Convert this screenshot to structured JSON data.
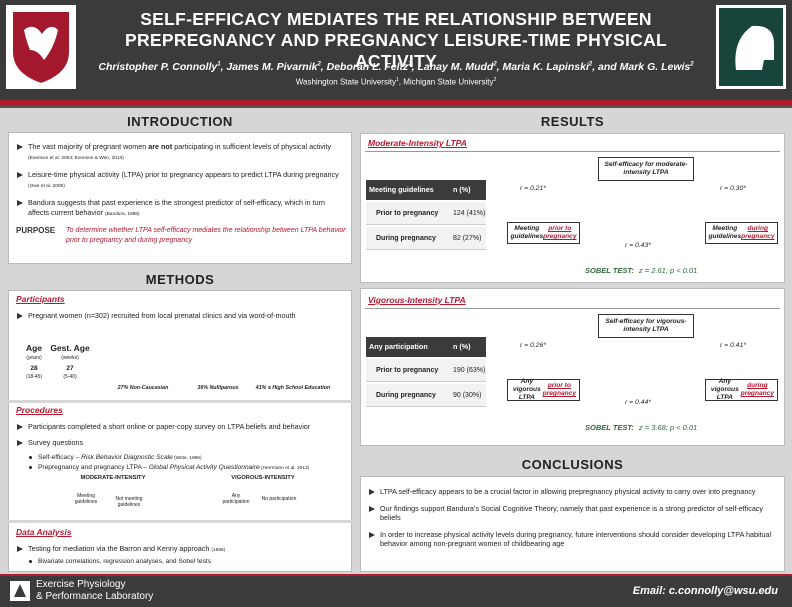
{
  "header": {
    "title_lines": [
      "SELF-EFFICACY MEDIATES THE RELATIONSHIP BETWEEN",
      "PREPREGNANCY AND PREGNANCY LEISURE-TIME PHYSICAL ACTIVITY"
    ],
    "authors": [
      {
        "name": "Christopher P. Connolly",
        "sup": "1"
      },
      {
        "name": ", James M. Pivarnik",
        "sup": "2"
      },
      {
        "name": ", Deborah L. Feltz",
        "sup": "2"
      },
      {
        "name": ", Lanay M. Mudd",
        "sup": "2"
      },
      {
        "name": ", Maria K. Lapinski",
        "sup": "2"
      },
      {
        "name": ", and Mark G. Lewis",
        "sup": "2"
      }
    ],
    "affiliations": [
      {
        "name": "Washington State University",
        "sup": "1"
      },
      {
        "name": ", Michigan State University",
        "sup": "2"
      }
    ]
  },
  "introduction": {
    "heading": "INTRODUCTION",
    "bullets": [
      [
        {
          "text": "The vast majority of pregnant women "
        },
        {
          "text": "are not",
          "style": "bold"
        },
        {
          "text": " participating in sufficient levels of physical activity "
        },
        {
          "text": "(Evenson et al. 2004; Evenson & Wen, 2010)",
          "style": "cite"
        }
      ],
      [
        {
          "text": "Leisure-time physical activity (LTPA) prior to pregnancy appears to predict LTPA during pregnancy "
        },
        {
          "text": "(Owe et al. 2009)",
          "style": "cite"
        }
      ],
      [
        {
          "text": "Bandura suggests that past experience is the strongest predictor of self-efficacy, which in turn affects current behavior "
        },
        {
          "text": "(Bandura, 1986)",
          "style": "cite"
        }
      ]
    ],
    "purpose_label": "PURPOSE",
    "purpose": "To determine whether LTPA self-efficacy mediates the relationship between LTPA behavior prior to pregnancy and during pregnancy"
  },
  "methods": {
    "heading": "METHODS",
    "participants": {
      "heading": "Participants",
      "bullet": "Pregnant women (n=302) recruited from local prenatal clinics and via word-of-mouth",
      "demographics": [
        {
          "label": "Age",
          "unit": "(years)",
          "value": "28",
          "range": "(18-45)"
        },
        {
          "label": "Gest. Age",
          "unit": "(weeks)",
          "value": "27",
          "range": "(5-40)"
        }
      ],
      "pies": [
        {
          "value": 27,
          "label": "27% Non-Caucasian"
        },
        {
          "value": 36,
          "label": "36% Nulliparous"
        },
        {
          "value": 41,
          "label": "41% ≤ High School Education"
        }
      ]
    },
    "procedures": {
      "heading": "Procedures",
      "bullets": [
        "Participants completed a short online or paper-copy survey on LTPA beliefs and behavior",
        "Survey questions"
      ],
      "sub_bullets": [
        [
          {
            "text": "Self-efficacy – "
          },
          {
            "text": "Risk Behavior Diagnostic Scale",
            "style": "italic"
          },
          {
            "text": " (Witte, 1996)",
            "style": "cite"
          }
        ],
        [
          {
            "text": "Prepregnancy and pregnancy LTPA – "
          },
          {
            "text": "Global Physical Activity Questionnaire",
            "style": "italic"
          },
          {
            "text": " (Herrmann et al. 2013)",
            "style": "cite"
          }
        ]
      ],
      "diagrams": [
        {
          "title": "MODERATE-INTENSITY",
          "left": "Meeting guidelines",
          "right": "Not meeting guidelines"
        },
        {
          "title": "VIGOROUS-INTENSITY",
          "left": "Any participation",
          "right": "No participation"
        }
      ]
    },
    "data_analysis": {
      "heading": "Data Analysis",
      "bullet": [
        {
          "text": "Testing for mediation via the Barron and Kenny approach "
        },
        {
          "text": "(1986)",
          "style": "cite"
        }
      ],
      "sub_bullet": "Bivariate correlations, regression analyses, and Sobel tests"
    }
  },
  "results": {
    "heading": "RESULTS",
    "panels": [
      {
        "heading": "Moderate-Intensity LTPA",
        "table": {
          "header": [
            "Meeting guidelines",
            "n (%)"
          ],
          "rows": [
            [
              "Prior to pregnancy",
              "124 (41%)"
            ],
            [
              "During pregnancy",
              "82 (27%)"
            ]
          ]
        },
        "mediator": "Self-efficacy for moderate-intensity LTPA",
        "predictor": [
          {
            "text": "Meeting guidelines "
          },
          {
            "text": "prior to pregnancy",
            "style": "red"
          }
        ],
        "outcome": [
          {
            "text": "Meeting guidelines "
          },
          {
            "text": "during pregnancy",
            "style": "red"
          }
        ],
        "path_a": "r = 0.21*",
        "path_b": "r = 0.30*",
        "path_c": "r = 0.43*",
        "sobel_label": "SOBEL TEST:",
        "sobel": "z = 2.61; p < 0.01"
      },
      {
        "heading": "Vigorous-Intensity LTPA",
        "table": {
          "header": [
            "Any participation",
            "n (%)"
          ],
          "rows": [
            [
              "Prior to pregnancy",
              "190 (63%)"
            ],
            [
              "During pregnancy",
              "90 (30%)"
            ]
          ]
        },
        "mediator": "Self-efficacy for vigorous-intensity LTPA",
        "predictor": [
          {
            "text": "Any vigorous LTPA "
          },
          {
            "text": "prior to pregnancy",
            "style": "red"
          }
        ],
        "outcome": [
          {
            "text": "Any vigorous LTPA "
          },
          {
            "text": "during pregnancy",
            "style": "red"
          }
        ],
        "path_a": "r = 0.26*",
        "path_b": "r = 0.41*",
        "path_c": "r = 0.44*",
        "sobel_label": "SOBEL TEST:",
        "sobel": "z = 3.68; p < 0.01"
      }
    ]
  },
  "conclusions": {
    "heading": "CONCLUSIONS",
    "bullets": [
      "LTPA self-efficacy appears to be a crucial factor in allowing prepregnancy physical activity to carry over into pregnancy",
      "Our findings support Bandura’s Social Cognitive Theory, namely that past experience is a strong predictor of self-efficacy beliefs",
      "In order to increase physical activity levels during pregnancy, future interventions should consider developing LTPA habitual behavior among non-pregnant women of childbearing age"
    ]
  },
  "footer": {
    "lab_lines": [
      "Exercise Physiology",
      "& Performance Laboratory"
    ],
    "email": "Email: c.connolly@wsu.edu"
  }
}
